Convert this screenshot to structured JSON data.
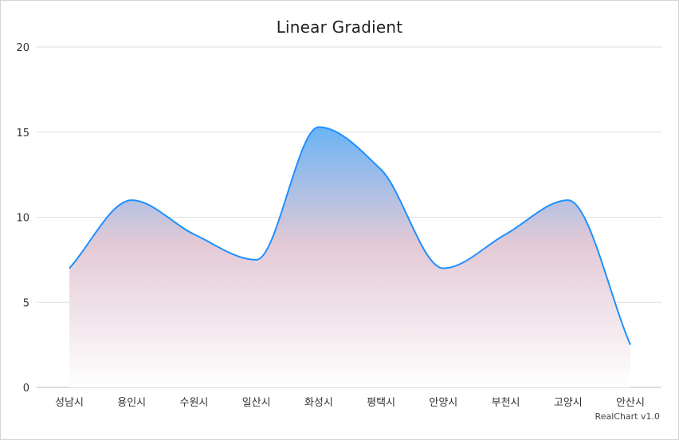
{
  "chart_data": {
    "type": "area",
    "title": "Linear Gradient",
    "categories": [
      "성남시",
      "용인시",
      "수원시",
      "일산시",
      "화성시",
      "평택시",
      "안양시",
      "부천시",
      "고양시",
      "안산시"
    ],
    "values": [
      7,
      11,
      9,
      7.5,
      15.3,
      12.8,
      7,
      9,
      11,
      2.5
    ],
    "ylim": [
      0,
      20
    ],
    "yticks": [
      "0",
      "5",
      "10",
      "15",
      "20"
    ],
    "xlabel": "",
    "ylabel": "",
    "grid": true,
    "line_color": "#1e90ff",
    "gradient_top_color": "#6ab4f5",
    "gradient_mid_color": "#e3c9d6",
    "gradient_bottom_color": "#ffffff",
    "grid_color": "#dddddd"
  },
  "credit": "RealChart v1.0"
}
